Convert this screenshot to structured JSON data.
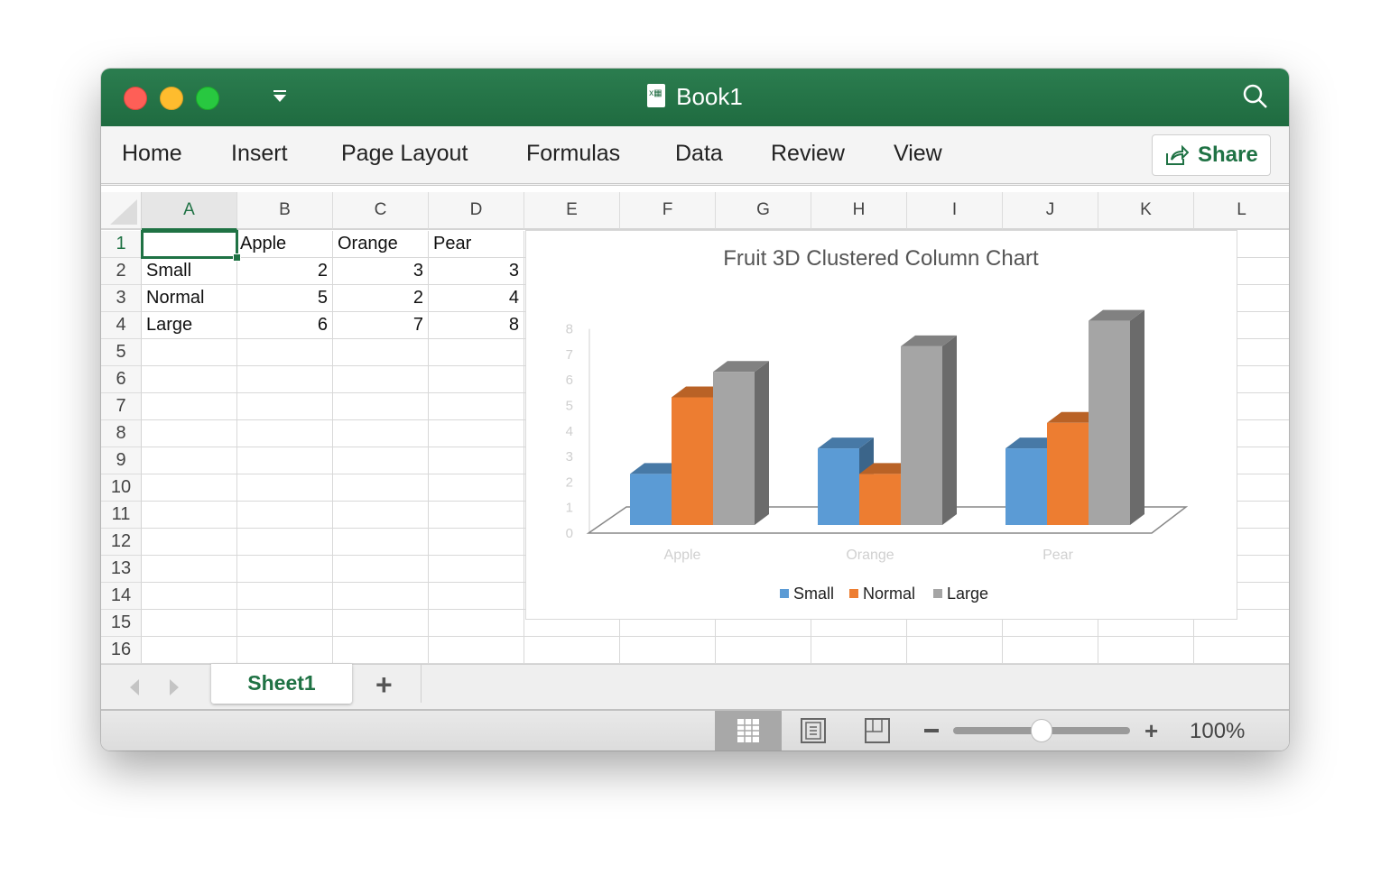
{
  "window": {
    "title": "Book1"
  },
  "ribbon": {
    "tabs": [
      "Home",
      "Insert",
      "Page Layout",
      "Formulas",
      "Data",
      "Review",
      "View"
    ],
    "share_label": "Share"
  },
  "sheet": {
    "columns": [
      "A",
      "B",
      "C",
      "D",
      "E",
      "F",
      "G",
      "H",
      "I",
      "J",
      "K",
      "L"
    ],
    "rows": [
      "1",
      "2",
      "3",
      "4",
      "5",
      "6",
      "7",
      "8",
      "9",
      "10",
      "11",
      "12",
      "13",
      "14",
      "15",
      "16"
    ],
    "selected_cell": "A1",
    "cells": [
      [
        "",
        "Apple",
        "Orange",
        "Pear"
      ],
      [
        "Small",
        "2",
        "3",
        "3"
      ],
      [
        "Normal",
        "5",
        "2",
        "4"
      ],
      [
        "Large",
        "6",
        "7",
        "8"
      ]
    ]
  },
  "chart_data": {
    "type": "bar",
    "subtype": "3d-clustered-column",
    "title": "Fruit 3D Clustered Column Chart",
    "categories": [
      "Apple",
      "Orange",
      "Pear"
    ],
    "series": [
      {
        "name": "Small",
        "values": [
          2,
          3,
          3
        ],
        "color": "#5b9bd5"
      },
      {
        "name": "Normal",
        "values": [
          5,
          2,
          4
        ],
        "color": "#ed7d31"
      },
      {
        "name": "Large",
        "values": [
          6,
          7,
          8
        ],
        "color": "#a5a5a5"
      }
    ],
    "yticks": [
      "0",
      "1",
      "2",
      "3",
      "4",
      "5",
      "6",
      "7",
      "8"
    ],
    "ylim": [
      0,
      8
    ],
    "grid": false,
    "legend": "bottom"
  },
  "sheet_tabs": {
    "active": "Sheet1",
    "add_label": "+"
  },
  "status": {
    "zoom": "100%",
    "zoom_percent": 100
  },
  "colors": {
    "brand": "#1f7244",
    "titlebar": "#227447"
  }
}
